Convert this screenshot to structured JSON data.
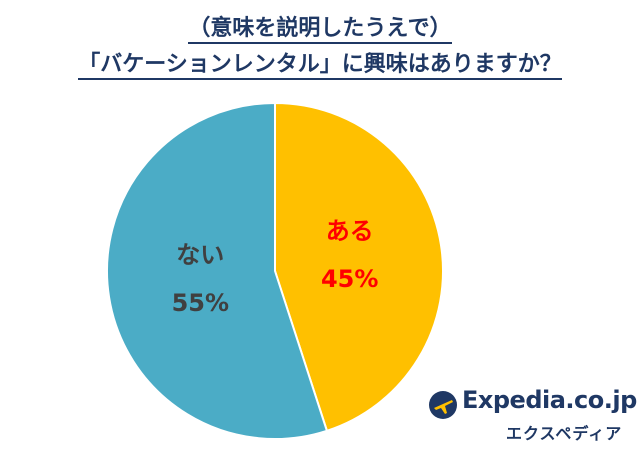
{
  "title": {
    "line1": "（意味を説明したうえで）",
    "line2": "「バケーションレンタル」に興味はありますか？"
  },
  "colors": {
    "title": "#1f3864",
    "yes_slice": "#ffc000",
    "no_slice": "#4bacc6",
    "yes_label": "#ff0000",
    "no_label": "#404040"
  },
  "chart_data": {
    "type": "pie",
    "slices": [
      {
        "label": "ある",
        "value": 45,
        "value_text": "45%"
      },
      {
        "label": "ない",
        "value": 55,
        "value_text": "55%"
      }
    ]
  },
  "brand": {
    "name": "Expedia.co.jp",
    "sub": "エクスペディア",
    "icon": "airplane-globe-icon"
  }
}
